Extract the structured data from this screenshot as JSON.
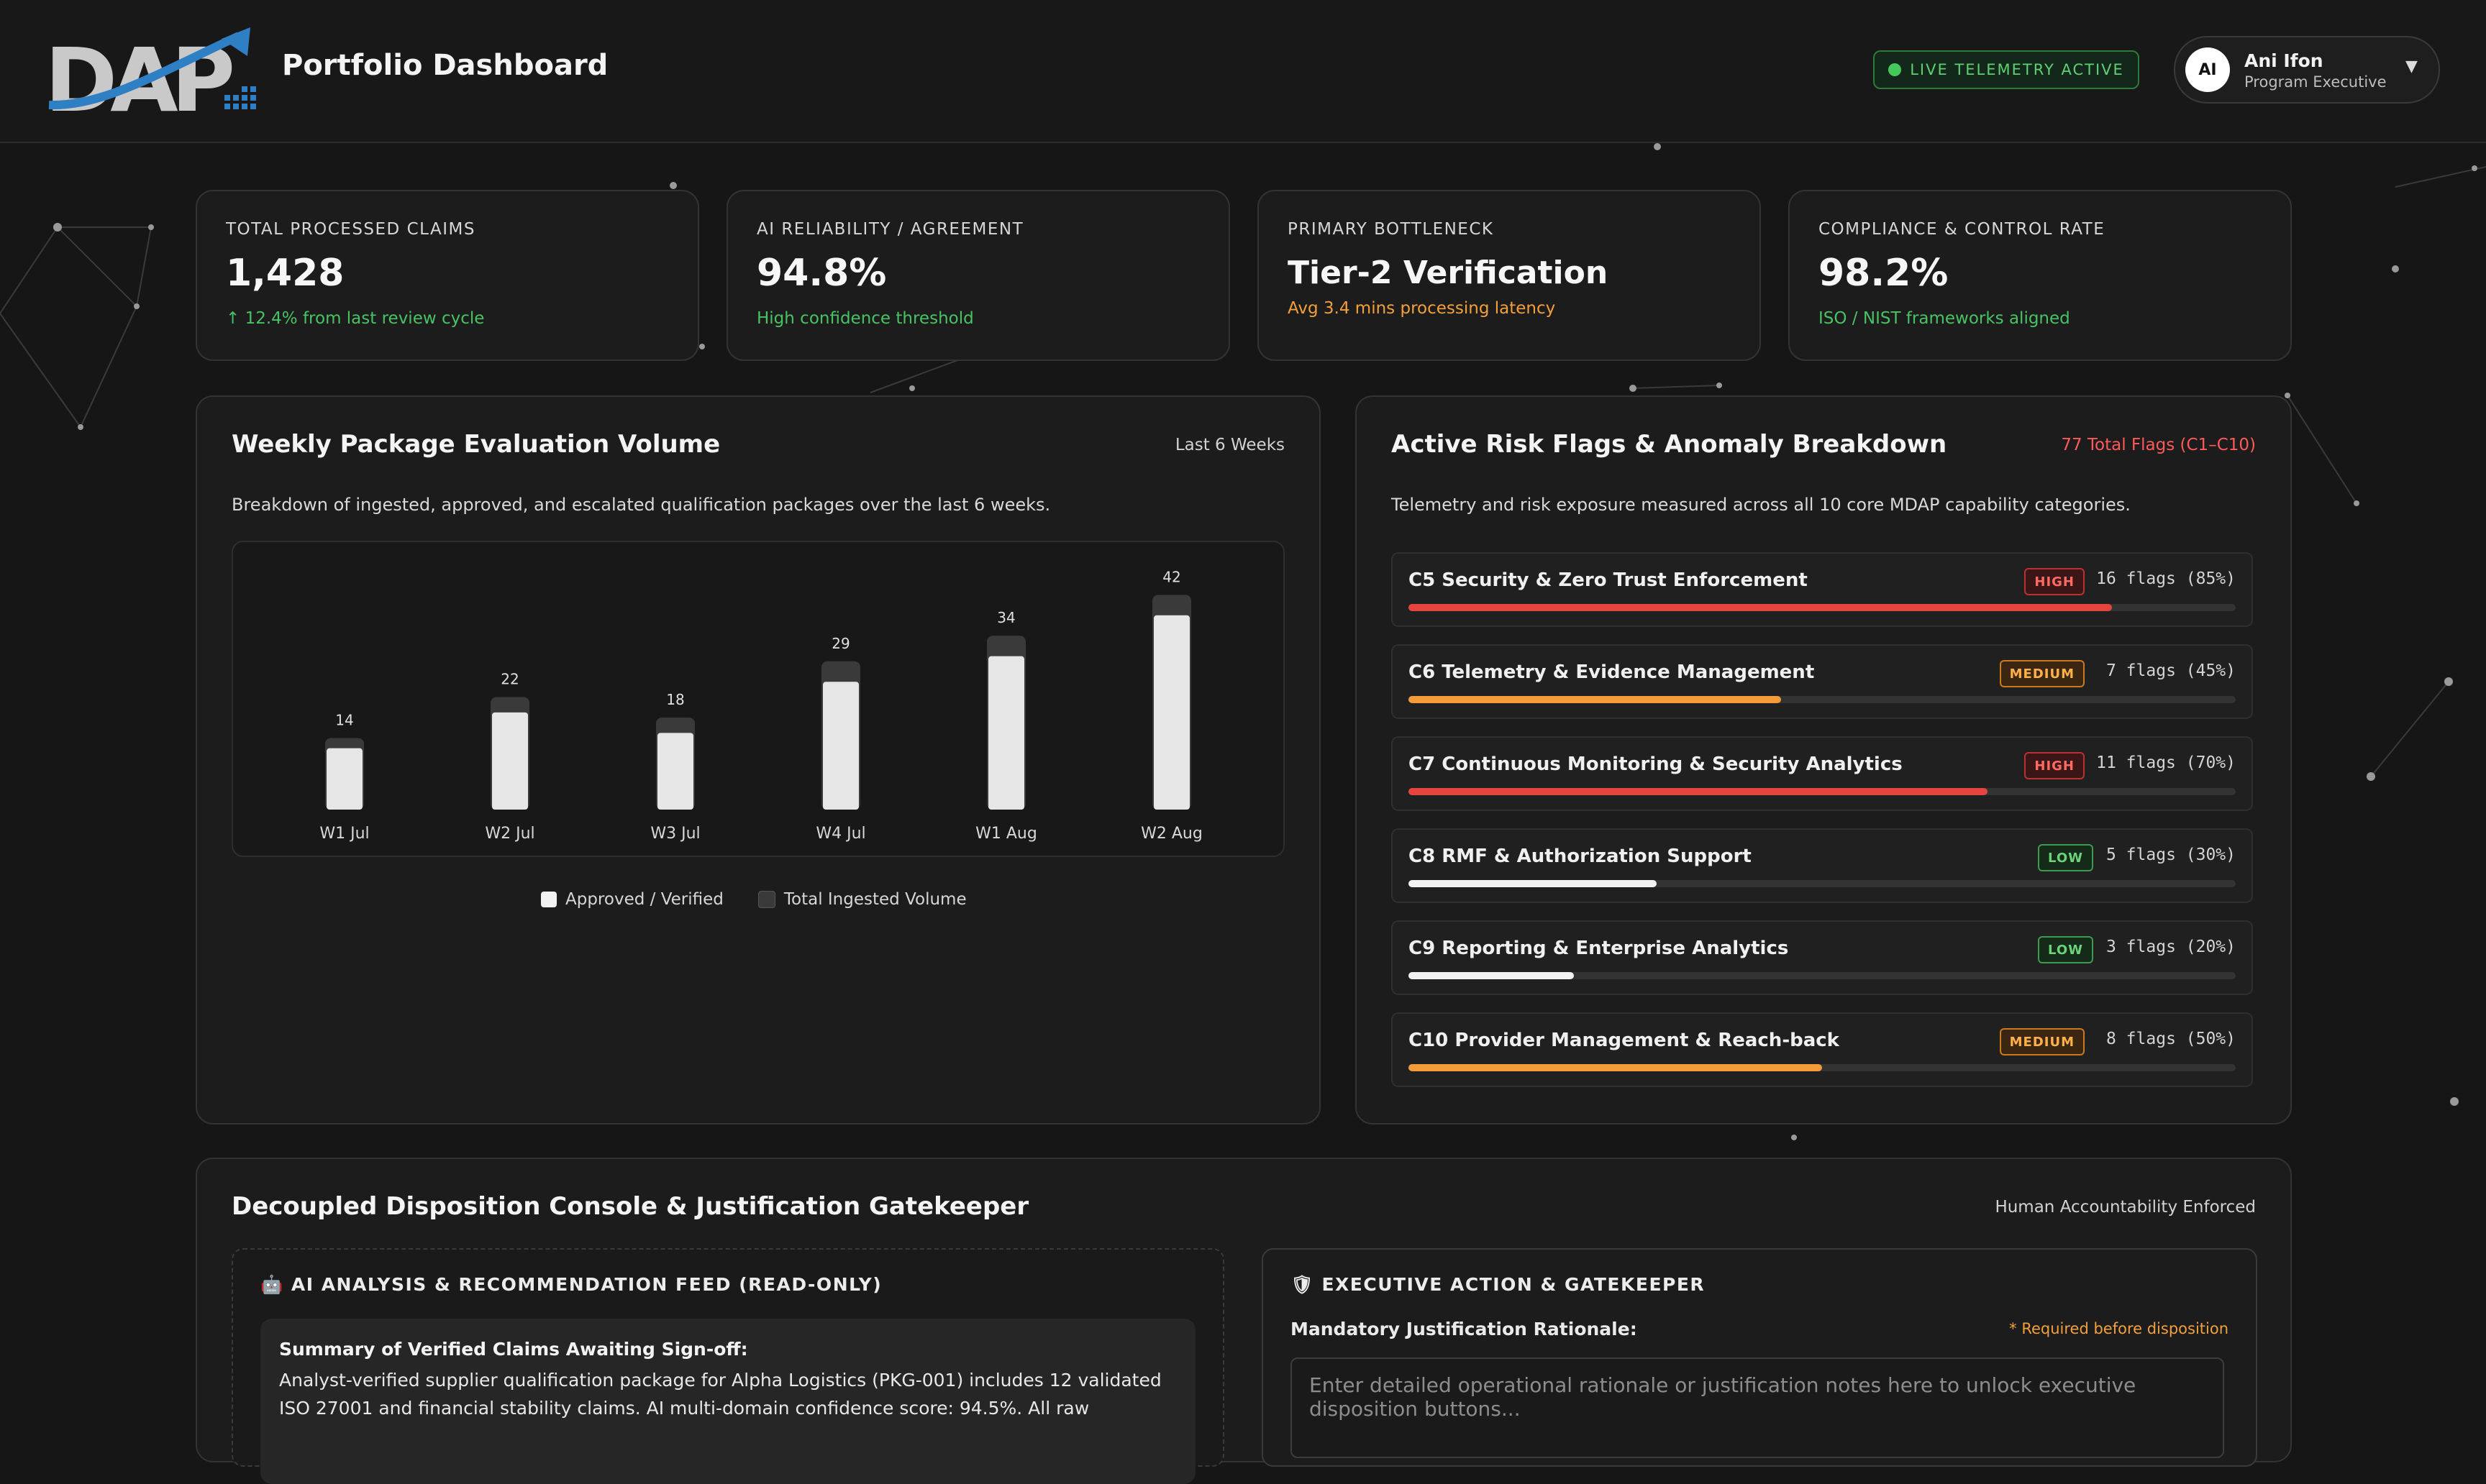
{
  "header": {
    "logo_text": "DAP",
    "title": "Portfolio Dashboard",
    "live_status": "LIVE TELEMETRY ACTIVE",
    "user": {
      "initials": "AI",
      "name": "Ani Ifon",
      "role": "Program Executive",
      "caret": "▼"
    }
  },
  "kpis": [
    {
      "label": "TOTAL PROCESSED CLAIMS",
      "value": "1,428",
      "note": "↑ 12.4% from last review cycle"
    },
    {
      "label": "AI RELIABILITY / AGREEMENT",
      "value": "94.8%",
      "note": "High confidence threshold"
    },
    {
      "label": "PRIMARY BOTTLENECK",
      "value": "Tier-2 Verification",
      "note": "Avg 3.4 mins processing latency"
    },
    {
      "label": "COMPLIANCE & CONTROL RATE",
      "value": "98.2%",
      "note": "ISO / NIST frameworks aligned"
    }
  ],
  "volume_panel": {
    "title": "Weekly Package Evaluation Volume",
    "range_label": "Last 6 Weeks",
    "description": "Breakdown of ingested, approved, and escalated qualification packages over the last 6 weeks.",
    "legend": {
      "approved": "Approved / Verified",
      "total": "Total Ingested Volume"
    }
  },
  "chart_data": {
    "type": "bar",
    "categories": [
      "W1 Jul",
      "W2 Jul",
      "W3 Jul",
      "W4 Jul",
      "W1 Aug",
      "W2 Aug"
    ],
    "series": [
      {
        "name": "Total Ingested Volume",
        "values": [
          14,
          22,
          18,
          29,
          34,
          42
        ]
      },
      {
        "name": "Approved / Verified",
        "values": [
          12,
          19,
          15,
          25,
          30,
          38
        ]
      }
    ],
    "data_labels": [
      "14",
      "22",
      "18",
      "29",
      "34",
      "42"
    ],
    "ylim": [
      0,
      45
    ],
    "grid": false,
    "legend_position": "bottom",
    "colors": {
      "approved": "#e6e6e6",
      "total": "#3a3a3a"
    }
  },
  "risk_panel": {
    "title": "Active Risk Flags & Anomaly Breakdown",
    "total_label": "77 Total Flags (C1–C10)",
    "description": "Telemetry and risk exposure measured across all 10 core MDAP capability categories.",
    "items": [
      {
        "name": "C5 Security & Zero Trust Enforcement",
        "level": "HIGH",
        "count": "16 flags (85%)",
        "percent": 85,
        "color": "#e6453f"
      },
      {
        "name": "C6 Telemetry & Evidence Management",
        "level": "MEDIUM",
        "count": "7 flags (45%)",
        "percent": 45,
        "color": "#f39a3a"
      },
      {
        "name": "C7 Continuous Monitoring & Security Analytics",
        "level": "HIGH",
        "count": "11 flags (70%)",
        "percent": 70,
        "color": "#e6453f"
      },
      {
        "name": "C8 RMF & Authorization Support",
        "level": "LOW",
        "count": "5 flags (30%)",
        "percent": 30,
        "color": "#f2f2f2"
      },
      {
        "name": "C9 Reporting & Enterprise Analytics",
        "level": "LOW",
        "count": "3 flags (20%)",
        "percent": 20,
        "color": "#f2f2f2"
      },
      {
        "name": "C10 Provider Management & Reach-back",
        "level": "MEDIUM",
        "count": "8 flags (50%)",
        "percent": 50,
        "color": "#f39a3a"
      }
    ]
  },
  "console": {
    "title": "Decoupled Disposition Console & Justification Gatekeeper",
    "tag": "Human Accountability Enforced",
    "feed": {
      "icon": "robot-icon",
      "heading": "AI ANALYSIS & RECOMMENDATION FEED (READ-ONLY)",
      "summary_title": "Summary of Verified Claims Awaiting Sign-off:",
      "summary_text": "Analyst-verified supplier qualification package for Alpha Logistics (PKG-001) includes 12 validated ISO 27001 and financial stability claims. AI multi-domain confidence score: 94.5%. All raw"
    },
    "executive": {
      "icon": "shield-icon",
      "heading": "EXECUTIVE ACTION & GATEKEEPER",
      "label": "Mandatory Justification Rationale:",
      "required_note": "* Required before disposition",
      "placeholder": "Enter detailed operational rationale or justification notes here to unlock executive disposition buttons..."
    }
  },
  "theme": {
    "background": "#161616",
    "card": "#1c1c1c",
    "accent_green": "#48c364",
    "accent_orange": "#f3a03a",
    "accent_red": "#e6453f"
  }
}
